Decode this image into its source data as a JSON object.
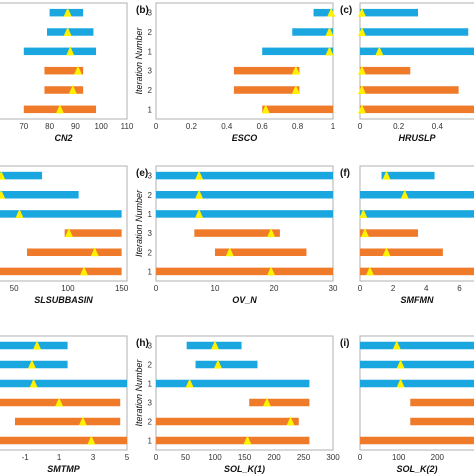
{
  "colors": {
    "blue": "#1aa7e0",
    "orange": "#ee7a2a",
    "marker": "#fff200",
    "frame": "#b0b0b0"
  },
  "shared": {
    "y_axis_label": "Iteration Number",
    "categories": [
      "1",
      "2",
      "3",
      "1",
      "2",
      "3"
    ]
  },
  "chart_data": [
    {
      "type": "bar",
      "panel": "",
      "xlabel": "CN2",
      "xlim": [
        60,
        110
      ],
      "xticks": [
        "70",
        "80",
        "90",
        "100",
        "110"
      ],
      "show_ylabel": false,
      "rows": [
        {
          "it": "1",
          "color": "orange",
          "lo": 70,
          "hi": 98,
          "best": 84
        },
        {
          "it": "2",
          "color": "orange",
          "lo": 78,
          "hi": 93,
          "best": 89
        },
        {
          "it": "3",
          "color": "orange",
          "lo": 78,
          "hi": 93,
          "best": 91
        },
        {
          "it": "1",
          "color": "blue",
          "lo": 70,
          "hi": 98,
          "best": 88
        },
        {
          "it": "2",
          "color": "blue",
          "lo": 79,
          "hi": 97,
          "best": 87
        },
        {
          "it": "3",
          "color": "blue",
          "lo": 80,
          "hi": 93,
          "best": 87
        }
      ]
    },
    {
      "type": "bar",
      "panel": "(b)",
      "xlabel": "ESCO",
      "xlim": [
        0,
        1
      ],
      "xticks": [
        "0",
        "0.2",
        "0.4",
        "0.6",
        "0.8",
        "1"
      ],
      "show_ylabel": true,
      "rows": [
        {
          "it": "1",
          "color": "orange",
          "lo": 0.6,
          "hi": 1.0,
          "best": 0.62
        },
        {
          "it": "2",
          "color": "orange",
          "lo": 0.44,
          "hi": 0.81,
          "best": 0.79
        },
        {
          "it": "3",
          "color": "orange",
          "lo": 0.44,
          "hi": 0.81,
          "best": 0.79
        },
        {
          "it": "1",
          "color": "blue",
          "lo": 0.6,
          "hi": 1.0,
          "best": 0.98
        },
        {
          "it": "2",
          "color": "blue",
          "lo": 0.77,
          "hi": 1.0,
          "best": 0.98
        },
        {
          "it": "3",
          "color": "blue",
          "lo": 0.89,
          "hi": 1.0,
          "best": 0.99
        }
      ]
    },
    {
      "type": "bar",
      "panel": "(c)",
      "xlabel": "HRUSLP",
      "xlim": [
        0,
        0.6
      ],
      "xticks": [
        "0",
        "0.2",
        "0.4"
      ],
      "show_ylabel": false,
      "rows": [
        {
          "it": "1",
          "color": "orange",
          "lo": 0.0,
          "hi": 0.6,
          "best": 0.01
        },
        {
          "it": "2",
          "color": "orange",
          "lo": 0.0,
          "hi": 0.51,
          "best": 0.01
        },
        {
          "it": "3",
          "color": "orange",
          "lo": 0.0,
          "hi": 0.26,
          "best": 0.01
        },
        {
          "it": "1",
          "color": "blue",
          "lo": 0.0,
          "hi": 0.6,
          "best": 0.1
        },
        {
          "it": "2",
          "color": "blue",
          "lo": 0.0,
          "hi": 0.56,
          "best": 0.01
        },
        {
          "it": "3",
          "color": "blue",
          "lo": 0.0,
          "hi": 0.3,
          "best": 0.01
        }
      ]
    },
    {
      "type": "bar",
      "panel": "",
      "xlabel": "SLSUBBASIN",
      "xlim": [
        35,
        155
      ],
      "xticks": [
        "50",
        "100",
        "150"
      ],
      "show_ylabel": false,
      "rows": [
        {
          "it": "1",
          "color": "orange",
          "lo": 35,
          "hi": 150,
          "best": 115
        },
        {
          "it": "2",
          "color": "orange",
          "lo": 62,
          "hi": 150,
          "best": 125
        },
        {
          "it": "3",
          "color": "orange",
          "lo": 97,
          "hi": 150,
          "best": 101
        },
        {
          "it": "1",
          "color": "blue",
          "lo": 35,
          "hi": 150,
          "best": 55
        },
        {
          "it": "2",
          "color": "blue",
          "lo": 35,
          "hi": 110,
          "best": 38
        },
        {
          "it": "3",
          "color": "blue",
          "lo": 35,
          "hi": 76,
          "best": 38
        }
      ]
    },
    {
      "type": "bar",
      "panel": "(e)",
      "xlabel": "OV_N",
      "xlim": [
        0,
        30
      ],
      "xticks": [
        "0",
        "10",
        "20",
        "30"
      ],
      "show_ylabel": true,
      "rows": [
        {
          "it": "1",
          "color": "orange",
          "lo": 0,
          "hi": 30,
          "best": 19.5
        },
        {
          "it": "2",
          "color": "orange",
          "lo": 10,
          "hi": 25.5,
          "best": 12.5
        },
        {
          "it": "3",
          "color": "orange",
          "lo": 6.5,
          "hi": 21,
          "best": 19.5
        },
        {
          "it": "1",
          "color": "blue",
          "lo": 0,
          "hi": 30,
          "best": 7.3
        },
        {
          "it": "2",
          "color": "blue",
          "lo": 0,
          "hi": 30,
          "best": 7.3
        },
        {
          "it": "3",
          "color": "blue",
          "lo": 0,
          "hi": 30,
          "best": 7.3
        }
      ]
    },
    {
      "type": "bar",
      "panel": "(f)",
      "xlabel": "SMFMN",
      "xlim": [
        0,
        7
      ],
      "xticks": [
        "0",
        "2",
        "4",
        "6"
      ],
      "show_ylabel": false,
      "rows": [
        {
          "it": "1",
          "color": "orange",
          "lo": 0,
          "hi": 7,
          "best": 0.6
        },
        {
          "it": "2",
          "color": "orange",
          "lo": 0,
          "hi": 5.0,
          "best": 1.6
        },
        {
          "it": "3",
          "color": "orange",
          "lo": 0,
          "hi": 3.5,
          "best": 0.3
        },
        {
          "it": "1",
          "color": "blue",
          "lo": 0,
          "hi": 7,
          "best": 0.2
        },
        {
          "it": "2",
          "color": "blue",
          "lo": 0,
          "hi": 7,
          "best": 2.7
        },
        {
          "it": "3",
          "color": "blue",
          "lo": 1.3,
          "hi": 4.5,
          "best": 1.6
        }
      ]
    },
    {
      "type": "bar",
      "panel": "",
      "xlabel": "SMTMP",
      "xlim": [
        -2.6,
        5
      ],
      "xticks": [
        "-1",
        "1",
        "3",
        "5"
      ],
      "show_ylabel": false,
      "rows": [
        {
          "it": "1",
          "color": "orange",
          "lo": -2.6,
          "hi": 5,
          "best": 2.9
        },
        {
          "it": "2",
          "color": "orange",
          "lo": -1.6,
          "hi": 4.6,
          "best": 2.4
        },
        {
          "it": "3",
          "color": "orange",
          "lo": -2.6,
          "hi": 4.6,
          "best": 1.0
        },
        {
          "it": "1",
          "color": "blue",
          "lo": -2.6,
          "hi": 5,
          "best": -0.5
        },
        {
          "it": "2",
          "color": "blue",
          "lo": -2.6,
          "hi": 1.5,
          "best": -0.6
        },
        {
          "it": "3",
          "color": "blue",
          "lo": -2.6,
          "hi": 1.5,
          "best": -0.3
        }
      ]
    },
    {
      "type": "bar",
      "panel": "(h)",
      "xlabel": "SOL_K(1)",
      "xlim": [
        0,
        300
      ],
      "xticks": [
        "0",
        "50",
        "100",
        "150",
        "200",
        "250",
        "300"
      ],
      "show_ylabel": true,
      "rows": [
        {
          "it": "1",
          "color": "orange",
          "lo": 0,
          "hi": 260,
          "best": 155
        },
        {
          "it": "2",
          "color": "orange",
          "lo": 0,
          "hi": 242,
          "best": 228
        },
        {
          "it": "3",
          "color": "orange",
          "lo": 158,
          "hi": 260,
          "best": 188
        },
        {
          "it": "1",
          "color": "blue",
          "lo": 0,
          "hi": 260,
          "best": 57
        },
        {
          "it": "2",
          "color": "blue",
          "lo": 67,
          "hi": 172,
          "best": 105
        },
        {
          "it": "3",
          "color": "blue",
          "lo": 52,
          "hi": 145,
          "best": 100
        }
      ]
    },
    {
      "type": "bar",
      "panel": "(i)",
      "xlabel": "SOL_K(2)",
      "xlim": [
        0,
        300
      ],
      "xticks": [
        "0",
        "100",
        "200"
      ],
      "show_ylabel": false,
      "rows": [
        {
          "it": "1",
          "color": "orange",
          "lo": 0,
          "hi": 300,
          "best": null
        },
        {
          "it": "2",
          "color": "orange",
          "lo": 130,
          "hi": 300,
          "best": null
        },
        {
          "it": "3",
          "color": "orange",
          "lo": 130,
          "hi": 300,
          "best": null
        },
        {
          "it": "1",
          "color": "blue",
          "lo": 0,
          "hi": 300,
          "best": 105
        },
        {
          "it": "2",
          "color": "blue",
          "lo": 0,
          "hi": 300,
          "best": 105
        },
        {
          "it": "3",
          "color": "blue",
          "lo": 0,
          "hi": 300,
          "best": 95
        }
      ]
    }
  ]
}
